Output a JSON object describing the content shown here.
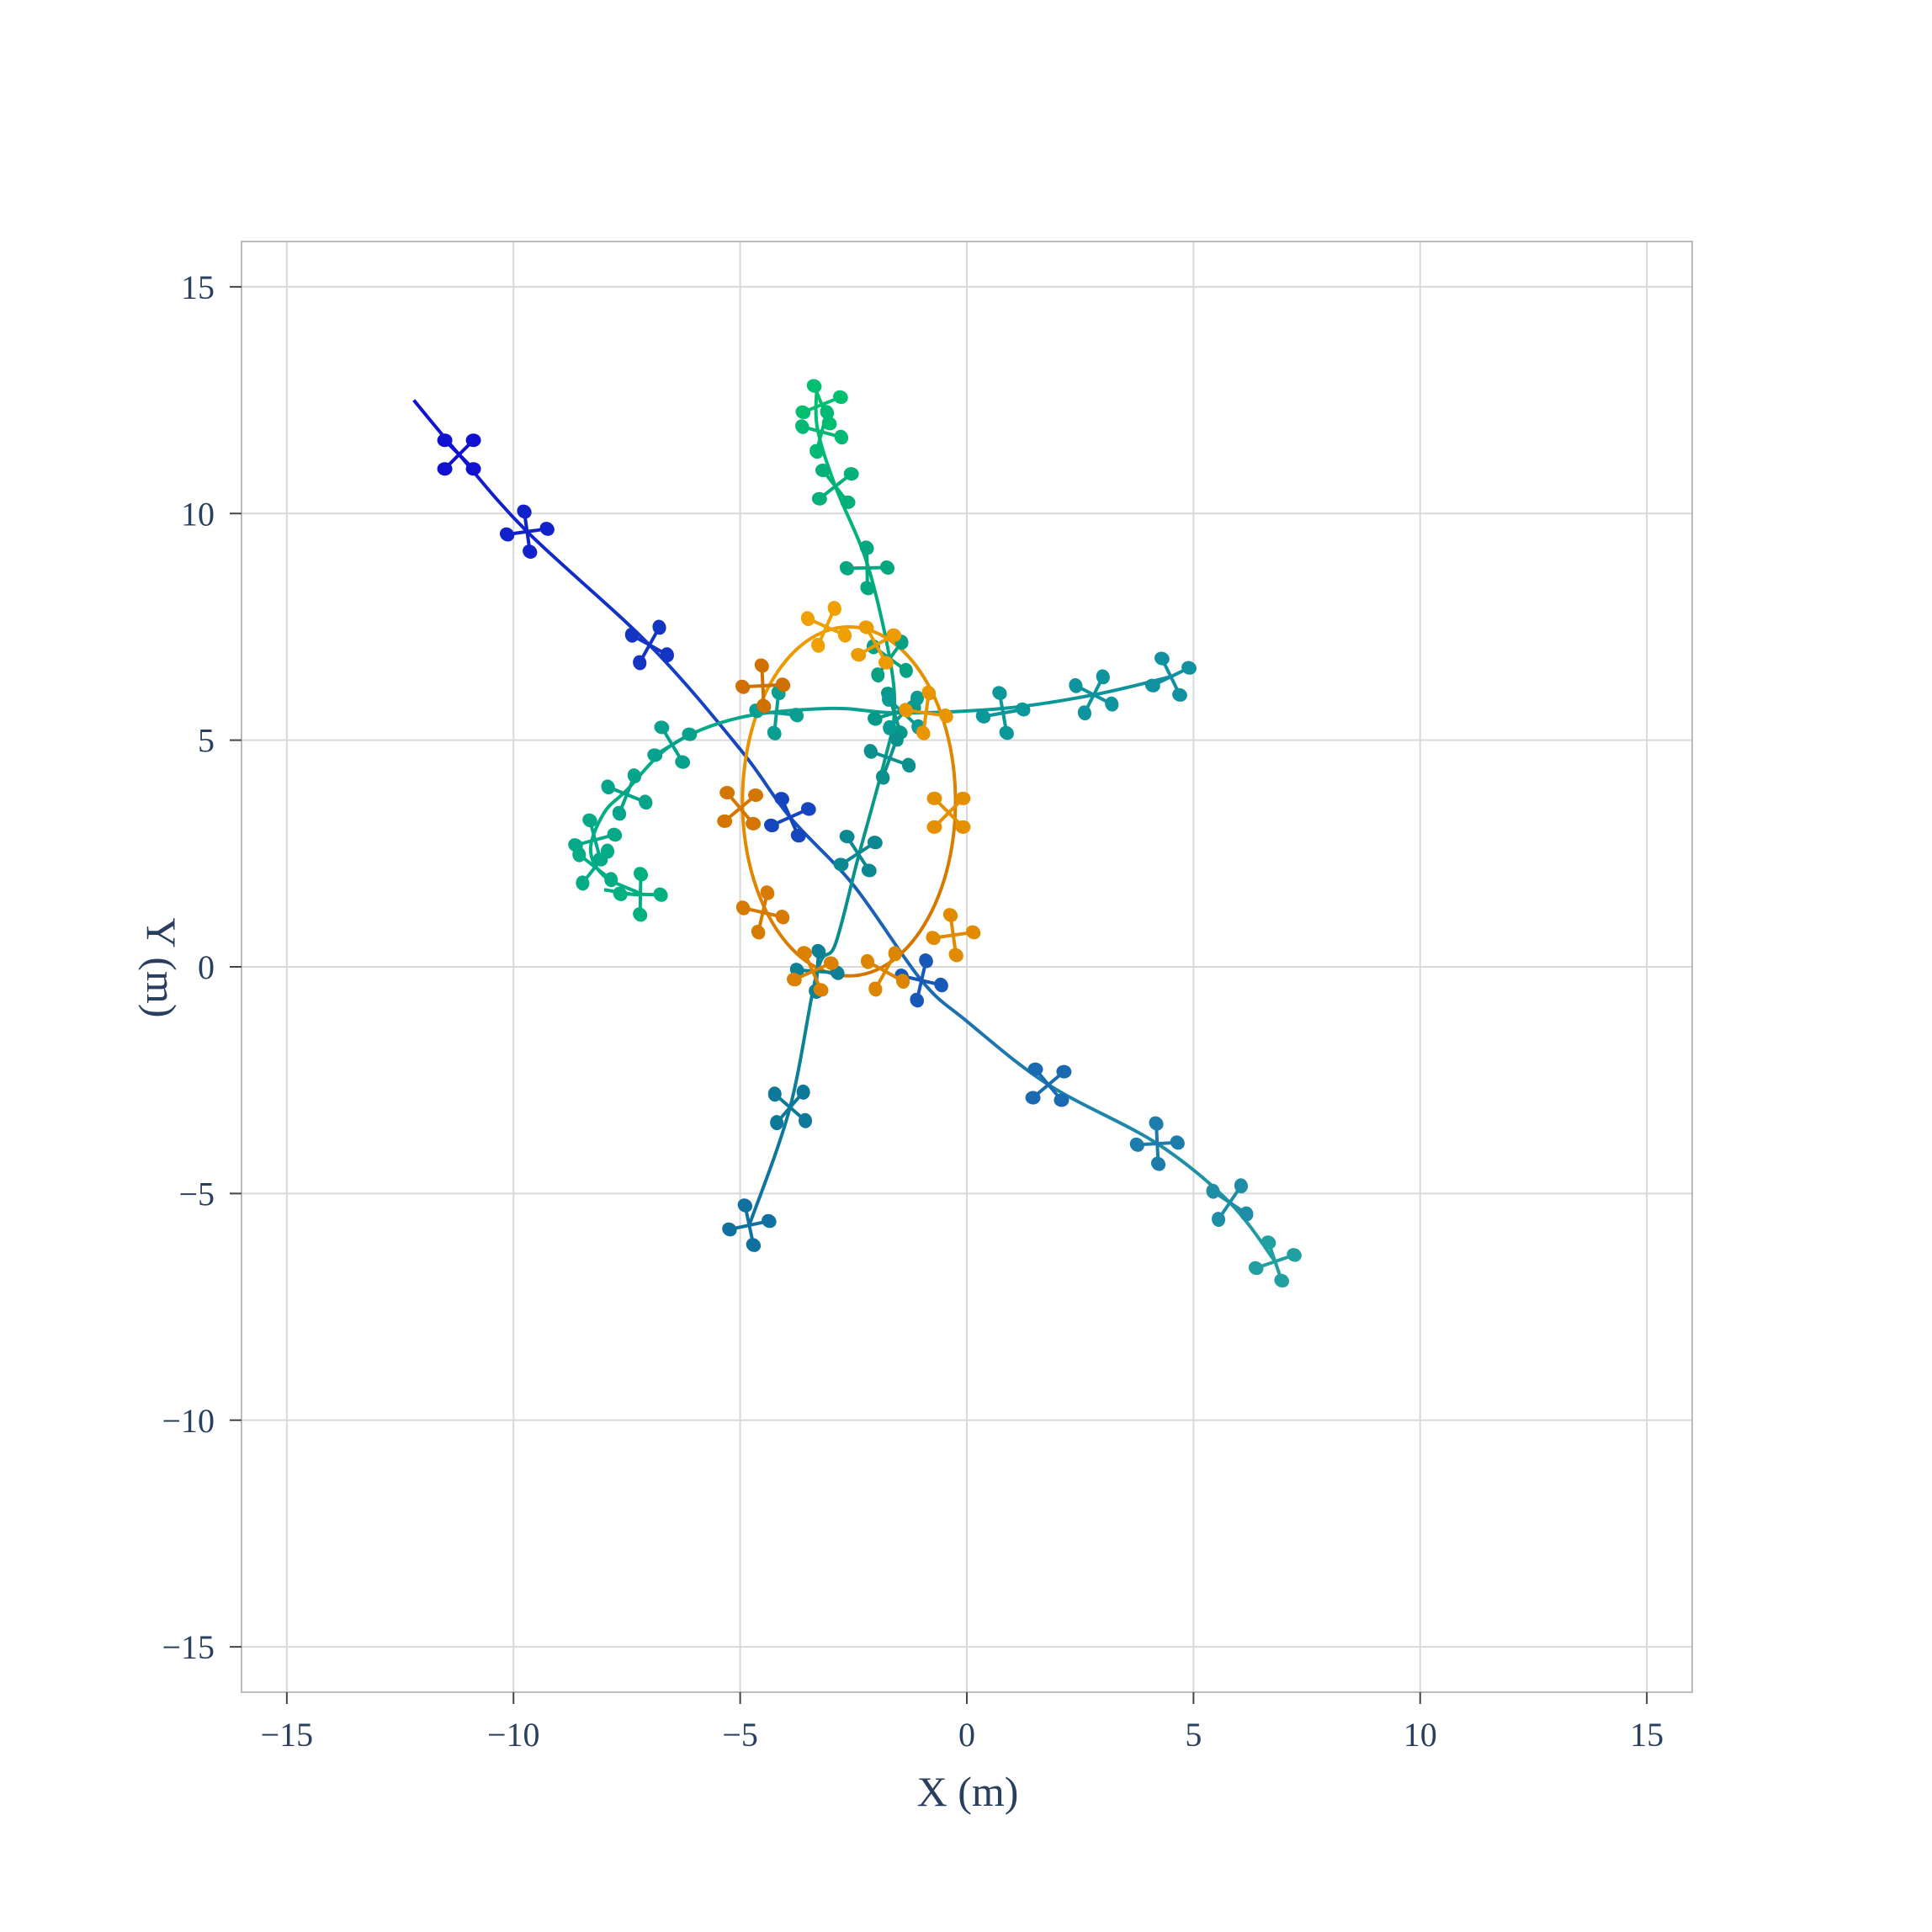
{
  "chart_data": {
    "type": "line",
    "title": "",
    "xlabel": "X (m)",
    "ylabel": "Y (m)",
    "xlim": [
      -16,
      16
    ],
    "ylim": [
      -16,
      16
    ],
    "xticks": [
      -15,
      -10,
      -5,
      0,
      5,
      10,
      15
    ],
    "yticks": [
      -15,
      -10,
      -5,
      0,
      5,
      10,
      15
    ],
    "xtick_labels": [
      "−15",
      "−10",
      "−5",
      "0",
      "5",
      "10",
      "15"
    ],
    "ytick_labels": [
      "−15",
      "−10",
      "−5",
      "0",
      "5",
      "10",
      "15"
    ],
    "grid": true,
    "legend": "none",
    "colors": {
      "text": "#2a3f5f",
      "grid": "#d9d9d9"
    },
    "series": [
      {
        "color_start": "#1010d0",
        "color_end": "#20a0a0",
        "x": [
          -12.2,
          -11.2,
          -9.7,
          -7.0,
          -5.0,
          -3.9,
          -2.5,
          -1.0,
          0.0,
          1.8,
          4.2,
          5.8,
          6.8
        ],
        "y": [
          12.5,
          11.3,
          9.6,
          7.1,
          4.8,
          3.3,
          1.8,
          -0.3,
          -1.2,
          -2.6,
          -3.9,
          -5.2,
          -6.5
        ],
        "drones": [
          {
            "x": -11.2,
            "y": 11.3
          },
          {
            "x": -9.7,
            "y": 9.6
          },
          {
            "x": -7.0,
            "y": 7.1
          },
          {
            "x": -3.9,
            "y": 3.3
          },
          {
            "x": -1.0,
            "y": -0.3
          },
          {
            "x": 1.8,
            "y": -2.6
          },
          {
            "x": 4.2,
            "y": -3.9
          },
          {
            "x": 5.8,
            "y": -5.2
          },
          {
            "x": 6.8,
            "y": -6.5
          }
        ]
      },
      {
        "color_start": "#00c070",
        "color_end": "#1070a0",
        "x": [
          -3.3,
          -3.3,
          -2.9,
          -2.2,
          -1.7,
          -1.6,
          -1.8,
          -2.4,
          -2.9,
          -3.3,
          -3.9,
          -4.8
        ],
        "y": [
          12.9,
          11.9,
          10.6,
          8.9,
          6.8,
          5.6,
          4.6,
          2.4,
          0.5,
          -0.1,
          -3.1,
          -5.7
        ],
        "drones": [
          {
            "x": -3.2,
            "y": 12.4
          },
          {
            "x": -3.2,
            "y": 11.8
          },
          {
            "x": -2.9,
            "y": 10.6
          },
          {
            "x": -2.2,
            "y": 8.8
          },
          {
            "x": -1.7,
            "y": 6.8
          },
          {
            "x": -1.6,
            "y": 5.6
          },
          {
            "x": -1.7,
            "y": 4.6
          },
          {
            "x": -2.4,
            "y": 2.5
          },
          {
            "x": -3.3,
            "y": -0.1
          },
          {
            "x": -3.9,
            "y": -3.1
          },
          {
            "x": -4.8,
            "y": -5.7
          }
        ]
      },
      {
        "color_start": "#00b080",
        "color_end": "#1090a0",
        "x": [
          -8.0,
          -7.2,
          -8.0,
          -8.3,
          -8.0,
          -7.5,
          -6.5,
          -5.0,
          -3.0,
          -1.5,
          0.8,
          2.8,
          4.5
        ],
        "y": [
          1.7,
          1.6,
          2.0,
          2.6,
          3.4,
          3.9,
          4.9,
          5.5,
          5.7,
          5.6,
          5.7,
          6.0,
          6.4
        ],
        "drones": [
          {
            "x": -7.2,
            "y": 1.6
          },
          {
            "x": -8.2,
            "y": 2.2
          },
          {
            "x": -8.2,
            "y": 2.8
          },
          {
            "x": -7.5,
            "y": 3.8
          },
          {
            "x": -6.5,
            "y": 4.9
          },
          {
            "x": -4.2,
            "y": 5.6
          },
          {
            "x": -1.4,
            "y": 5.6
          },
          {
            "x": 0.8,
            "y": 5.6
          },
          {
            "x": 2.8,
            "y": 6.0
          },
          {
            "x": 4.5,
            "y": 6.4
          }
        ]
      },
      {
        "color_start": "#f0a000",
        "color_end": "#d07000",
        "ellipse": {
          "cx": -2.6,
          "cy": 3.65,
          "rx": 2.35,
          "ry": 3.85
        },
        "drones": [
          {
            "x": -3.1,
            "y": 7.5
          },
          {
            "x": -2.0,
            "y": 7.1
          },
          {
            "x": -0.9,
            "y": 5.6
          },
          {
            "x": -0.4,
            "y": 3.4
          },
          {
            "x": -0.3,
            "y": 0.7
          },
          {
            "x": -1.8,
            "y": -0.1
          },
          {
            "x": -3.4,
            "y": -0.1
          },
          {
            "x": -4.5,
            "y": 1.2
          },
          {
            "x": -5.0,
            "y": 3.5
          },
          {
            "x": -4.5,
            "y": 6.2
          }
        ]
      }
    ]
  }
}
